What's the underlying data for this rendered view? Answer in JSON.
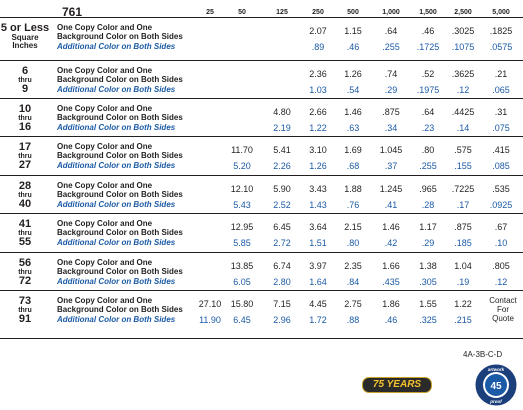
{
  "item_number": "761",
  "quantities": [
    "25",
    "50",
    "125",
    "250",
    "500",
    "1,000",
    "1,500",
    "2,500",
    "5,000"
  ],
  "rows": [
    {
      "range_top": "5 or Less",
      "range_mid": "Square",
      "range_bottom": "Inches",
      "line1": "One Copy Color and One",
      "line2": "Background Color on Both Sides",
      "line3": "Additional Color on Both Sides",
      "primary": [
        "",
        "",
        "",
        "2.07",
        "1.15",
        ".64",
        ".46",
        ".3025",
        ".1825"
      ],
      "additional": [
        "",
        "",
        "",
        ".89",
        ".46",
        ".255",
        ".1725",
        ".1075",
        ".0575"
      ]
    },
    {
      "range_top": "6",
      "range_mid": "thru",
      "range_bottom": "9",
      "line1": "One Copy Color and One",
      "line2": "Background Color on Both Sides",
      "line3": "Additional Color on Both Sides",
      "primary": [
        "",
        "",
        "",
        "2.36",
        "1.26",
        ".74",
        ".52",
        ".3625",
        ".21"
      ],
      "additional": [
        "",
        "",
        "",
        "1.03",
        ".54",
        ".29",
        ".1975",
        ".12",
        ".065"
      ]
    },
    {
      "range_top": "10",
      "range_mid": "thru",
      "range_bottom": "16",
      "line1": "One Copy Color and One",
      "line2": "Background Color on Both Sides",
      "line3": "Additional Color on Both Sides",
      "primary": [
        "",
        "",
        "4.80",
        "2.66",
        "1.46",
        ".875",
        ".64",
        ".4425",
        ".31"
      ],
      "additional": [
        "",
        "",
        "2.19",
        "1.22",
        ".63",
        ".34",
        ".23",
        ".14",
        ".075"
      ]
    },
    {
      "range_top": "17",
      "range_mid": "thru",
      "range_bottom": "27",
      "line1": "One Copy Color and One",
      "line2": "Background Color on Both Sides",
      "line3": "Additional Color on Both Sides",
      "primary": [
        "",
        "11.70",
        "5.41",
        "3.10",
        "1.69",
        "1.045",
        ".80",
        ".575",
        ".415"
      ],
      "additional": [
        "",
        "5.20",
        "2.26",
        "1.26",
        ".68",
        ".37",
        ".255",
        ".155",
        ".085"
      ]
    },
    {
      "range_top": "28",
      "range_mid": "thru",
      "range_bottom": "40",
      "line1": "One Copy Color and One",
      "line2": "Background Color on Both Sides",
      "line3": "Additional Color on Both Sides",
      "primary": [
        "",
        "12.10",
        "5.90",
        "3.43",
        "1.88",
        "1.245",
        ".965",
        ".7225",
        ".535"
      ],
      "additional": [
        "",
        "5.43",
        "2.52",
        "1.43",
        ".76",
        ".41",
        ".28",
        ".17",
        ".0925"
      ]
    },
    {
      "range_top": "41",
      "range_mid": "thru",
      "range_bottom": "55",
      "line1": "One Copy Color and One",
      "line2": "Background Color on Both Sides",
      "line3": "Additional Color on Both Sides",
      "primary": [
        "",
        "12.95",
        "6.45",
        "3.64",
        "2.15",
        "1.46",
        "1.17",
        ".875",
        ".67"
      ],
      "additional": [
        "",
        "5.85",
        "2.72",
        "1.51",
        ".80",
        ".42",
        ".29",
        ".185",
        ".10"
      ]
    },
    {
      "range_top": "56",
      "range_mid": "thru",
      "range_bottom": "72",
      "line1": "One Copy Color and One",
      "line2": "Background Color on Both Sides",
      "line3": "Additional Color on Both Sides",
      "primary": [
        "",
        "13.85",
        "6.74",
        "3.97",
        "2.35",
        "1.66",
        "1.38",
        "1.04",
        ".805"
      ],
      "additional": [
        "",
        "6.05",
        "2.80",
        "1.64",
        ".84",
        ".435",
        ".305",
        ".19",
        ".12"
      ]
    },
    {
      "range_top": "73",
      "range_mid": "thru",
      "range_bottom": "91",
      "line1": "One Copy Color and One",
      "line2": "Background Color on Both Sides",
      "line3": "Additional Color on Both Sides",
      "primary": [
        "27.10",
        "15.80",
        "7.15",
        "4.45",
        "2.75",
        "1.86",
        "1.55",
        "1.22",
        ""
      ],
      "additional": [
        "11.90",
        "6.45",
        "2.96",
        "1.72",
        ".88",
        ".46",
        ".325",
        ".215",
        ""
      ]
    }
  ],
  "contact_text": [
    "Contact",
    "For",
    "Quote"
  ],
  "code": "4A-3B-C-D",
  "badge_text": "75 YEARS",
  "seal": {
    "top_text": "artwork",
    "number": "45",
    "bottom_text": "proof"
  },
  "colors": {
    "text": "#231f20",
    "blue": "#1b5aa6",
    "badge_bg": "#2a2a2a",
    "badge_text": "#f2c12e"
  }
}
